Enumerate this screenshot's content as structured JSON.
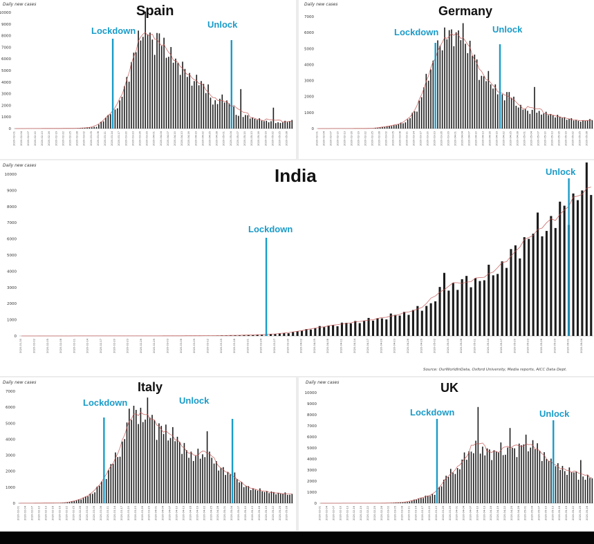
{
  "chart_data": [
    {
      "type": "bar",
      "title": "Spain",
      "ylabel": "Daily new cases",
      "ylim": [
        0,
        10000
      ],
      "yticks": [
        0,
        1000,
        2000,
        3000,
        4000,
        5000,
        6000,
        7000,
        8000,
        9000,
        10000
      ],
      "x_start": "2020-02-01",
      "x_end": "2020-05-30",
      "markers": [
        {
          "label": "Lockdown",
          "date": "2020-03-14"
        },
        {
          "label": "Unlock",
          "date": "2020-05-04"
        }
      ],
      "keypoints": [
        [
          "2020-02-01",
          0
        ],
        [
          "2020-02-28",
          20
        ],
        [
          "2020-03-07",
          150
        ],
        [
          "2020-03-14",
          1500
        ],
        [
          "2020-03-17",
          2200
        ],
        [
          "2020-03-21",
          4800
        ],
        [
          "2020-03-26",
          8300
        ],
        [
          "2020-03-28",
          9000
        ],
        [
          "2020-03-31",
          7400
        ],
        [
          "2020-04-03",
          7800
        ],
        [
          "2020-04-08",
          6200
        ],
        [
          "2020-04-13",
          5200
        ],
        [
          "2020-04-17",
          4200
        ],
        [
          "2020-04-22",
          3900
        ],
        [
          "2020-04-26",
          2200
        ],
        [
          "2020-04-30",
          2600
        ],
        [
          "2020-05-04",
          2100
        ],
        [
          "2020-05-06",
          1200
        ],
        [
          "2020-05-10",
          1100
        ],
        [
          "2020-05-15",
          800
        ],
        [
          "2020-05-20",
          600
        ],
        [
          "2020-05-25",
          500
        ],
        [
          "2020-05-30",
          700
        ]
      ],
      "spikes": [
        [
          "2020-05-08",
          3400
        ],
        [
          "2020-05-22",
          1800
        ],
        [
          "2020-04-24",
          3800
        ]
      ]
    },
    {
      "type": "bar",
      "title": "Germany",
      "ylabel": "Daily new cases",
      "ylim": [
        0,
        7000
      ],
      "yticks": [
        0,
        1000,
        2000,
        3000,
        4000,
        5000,
        6000,
        7000
      ],
      "x_start": "2020-02-01",
      "x_end": "2020-05-30",
      "markers": [
        {
          "label": "Lockdown",
          "date": "2020-03-23"
        },
        {
          "label": "Unlock",
          "date": "2020-04-20"
        }
      ],
      "keypoints": [
        [
          "2020-02-01",
          0
        ],
        [
          "2020-02-25",
          10
        ],
        [
          "2020-03-05",
          200
        ],
        [
          "2020-03-10",
          400
        ],
        [
          "2020-03-15",
          1200
        ],
        [
          "2020-03-19",
          3000
        ],
        [
          "2020-03-23",
          4500
        ],
        [
          "2020-03-27",
          5900
        ],
        [
          "2020-04-01",
          6000
        ],
        [
          "2020-04-04",
          5800
        ],
        [
          "2020-04-08",
          4800
        ],
        [
          "2020-04-12",
          3200
        ],
        [
          "2020-04-16",
          3000
        ],
        [
          "2020-04-20",
          2000
        ],
        [
          "2020-04-24",
          2200
        ],
        [
          "2020-04-28",
          1400
        ],
        [
          "2020-05-02",
          1100
        ],
        [
          "2020-05-08",
          1000
        ],
        [
          "2020-05-14",
          800
        ],
        [
          "2020-05-20",
          600
        ],
        [
          "2020-05-26",
          450
        ],
        [
          "2020-05-30",
          600
        ]
      ],
      "spikes": [
        [
          "2020-03-30",
          6200
        ],
        [
          "2020-04-15",
          3600
        ],
        [
          "2020-05-05",
          2600
        ]
      ]
    },
    {
      "type": "bar",
      "title": "India",
      "ylabel": "Daily new cases",
      "ylim": [
        0,
        10000
      ],
      "yticks": [
        0,
        1000,
        2000,
        3000,
        4000,
        5000,
        6000,
        7000,
        8000,
        9000,
        10000
      ],
      "x_start": "2020-01-30",
      "x_end": "2020-06-06",
      "markers": [
        {
          "label": "Lockdown",
          "date": "2020-03-25"
        },
        {
          "label": "Unlock",
          "date": "2020-06-01"
        }
      ],
      "keypoints": [
        [
          "2020-01-30",
          0
        ],
        [
          "2020-03-01",
          5
        ],
        [
          "2020-03-15",
          20
        ],
        [
          "2020-03-25",
          80
        ],
        [
          "2020-03-31",
          220
        ],
        [
          "2020-04-05",
          500
        ],
        [
          "2020-04-10",
          700
        ],
        [
          "2020-04-15",
          900
        ],
        [
          "2020-04-20",
          1100
        ],
        [
          "2020-04-25",
          1400
        ],
        [
          "2020-04-30",
          1800
        ],
        [
          "2020-05-04",
          2900
        ],
        [
          "2020-05-08",
          3300
        ],
        [
          "2020-05-12",
          3500
        ],
        [
          "2020-05-16",
          4100
        ],
        [
          "2020-05-20",
          5200
        ],
        [
          "2020-05-24",
          6500
        ],
        [
          "2020-05-28",
          7000
        ],
        [
          "2020-06-01",
          8000
        ],
        [
          "2020-06-03",
          8600
        ],
        [
          "2020-06-06",
          9900
        ]
      ],
      "spikes": [
        [
          "2020-05-04",
          3900
        ]
      ]
    },
    {
      "type": "bar",
      "title": "Italy",
      "ylabel": "Daily new cases",
      "ylim": [
        0,
        7000
      ],
      "yticks": [
        0,
        1000,
        2000,
        3000,
        4000,
        5000,
        6000,
        7000
      ],
      "x_start": "2020-02-01",
      "x_end": "2020-05-30",
      "markers": [
        {
          "label": "Lockdown",
          "date": "2020-03-09"
        },
        {
          "label": "Unlock",
          "date": "2020-05-04"
        }
      ],
      "keypoints": [
        [
          "2020-02-01",
          0
        ],
        [
          "2020-02-21",
          20
        ],
        [
          "2020-02-27",
          200
        ],
        [
          "2020-03-04",
          600
        ],
        [
          "2020-03-09",
          1500
        ],
        [
          "2020-03-13",
          2600
        ],
        [
          "2020-03-17",
          3500
        ],
        [
          "2020-03-21",
          6200
        ],
        [
          "2020-03-24",
          5200
        ],
        [
          "2020-03-28",
          5900
        ],
        [
          "2020-04-01",
          4700
        ],
        [
          "2020-04-05",
          4500
        ],
        [
          "2020-04-10",
          4000
        ],
        [
          "2020-04-15",
          3000
        ],
        [
          "2020-04-20",
          3000
        ],
        [
          "2020-04-25",
          2800
        ],
        [
          "2020-04-30",
          2000
        ],
        [
          "2020-05-04",
          1800
        ],
        [
          "2020-05-10",
          1000
        ],
        [
          "2020-05-16",
          800
        ],
        [
          "2020-05-22",
          650
        ],
        [
          "2020-05-30",
          550
        ]
      ],
      "spikes": [
        [
          "2020-04-23",
          4500
        ]
      ]
    },
    {
      "type": "bar",
      "title": "UK",
      "ylabel": "Daily new cases",
      "ylim": [
        0,
        10000
      ],
      "yticks": [
        0,
        1000,
        2000,
        3000,
        4000,
        5000,
        6000,
        7000,
        8000,
        9000,
        10000
      ],
      "x_start": "2020-02-01",
      "x_end": "2020-05-30",
      "markers": [
        {
          "label": "Lockdown",
          "date": "2020-03-23"
        },
        {
          "label": "Unlock",
          "date": "2020-05-13"
        }
      ],
      "keypoints": [
        [
          "2020-02-01",
          0
        ],
        [
          "2020-03-01",
          10
        ],
        [
          "2020-03-10",
          100
        ],
        [
          "2020-03-18",
          600
        ],
        [
          "2020-03-23",
          900
        ],
        [
          "2020-03-27",
          2500
        ],
        [
          "2020-04-01",
          3000
        ],
        [
          "2020-04-05",
          4500
        ],
        [
          "2020-04-10",
          5000
        ],
        [
          "2020-04-15",
          4500
        ],
        [
          "2020-04-20",
          4800
        ],
        [
          "2020-04-25",
          4600
        ],
        [
          "2020-04-30",
          5400
        ],
        [
          "2020-05-05",
          5200
        ],
        [
          "2020-05-10",
          4000
        ],
        [
          "2020-05-13",
          3500
        ],
        [
          "2020-05-18",
          3000
        ],
        [
          "2020-05-22",
          2800
        ],
        [
          "2020-05-26",
          2200
        ],
        [
          "2020-05-30",
          2500
        ]
      ],
      "spikes": [
        [
          "2020-04-10",
          8700
        ],
        [
          "2020-04-24",
          6800
        ],
        [
          "2020-05-01",
          6200
        ],
        [
          "2020-05-25",
          3900
        ]
      ]
    }
  ],
  "source_note": "Source: OurWorldInData, Oxford University, Media reports, AICC Data Dept.",
  "colors": {
    "bar": "#1b1b1b",
    "marker": "#1a9bc8",
    "avg_line": "#c0504d"
  }
}
